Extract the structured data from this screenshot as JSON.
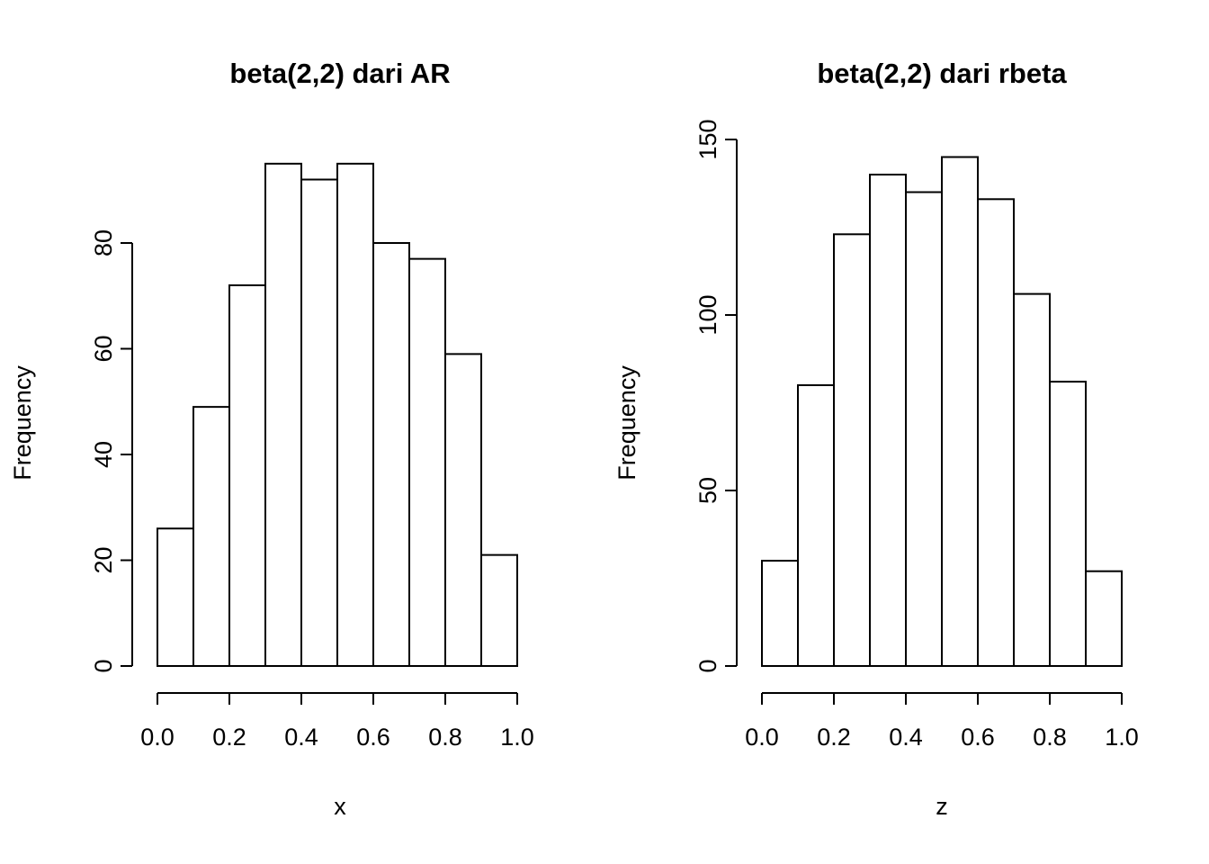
{
  "page": {
    "background": "#ffffff",
    "foreground": "#000000"
  },
  "chart_data": [
    {
      "type": "bar",
      "kind": "histogram",
      "title": "beta(2,2) dari AR",
      "xlabel": "x",
      "ylabel": "Frequency",
      "categories": [
        "0.0-0.1",
        "0.1-0.2",
        "0.2-0.3",
        "0.3-0.4",
        "0.4-0.5",
        "0.5-0.6",
        "0.6-0.7",
        "0.7-0.8",
        "0.8-0.9",
        "0.9-1.0"
      ],
      "values": [
        26,
        49,
        72,
        95,
        92,
        95,
        80,
        77,
        59,
        21
      ],
      "xlim": [
        0.0,
        1.0
      ],
      "ylim": [
        0,
        95
      ],
      "x_ticks": [
        0.0,
        0.2,
        0.4,
        0.6,
        0.8,
        1.0
      ],
      "x_tick_labels": [
        "0.0",
        "0.2",
        "0.4",
        "0.6",
        "0.8",
        "1.0"
      ],
      "y_ticks": [
        0,
        20,
        40,
        60,
        80
      ],
      "y_tick_labels": [
        "0",
        "20",
        "40",
        "60",
        "80"
      ],
      "grid": false,
      "legend": "none",
      "bar_fill": "#ffffff",
      "bar_stroke": "#000000"
    },
    {
      "type": "bar",
      "kind": "histogram",
      "title": "beta(2,2) dari rbeta",
      "xlabel": "z",
      "ylabel": "Frequency",
      "categories": [
        "0.0-0.1",
        "0.1-0.2",
        "0.2-0.3",
        "0.3-0.4",
        "0.4-0.5",
        "0.5-0.6",
        "0.6-0.7",
        "0.7-0.8",
        "0.8-0.9",
        "0.9-1.0"
      ],
      "values": [
        30,
        80,
        123,
        140,
        135,
        145,
        133,
        106,
        81,
        27
      ],
      "xlim": [
        0.0,
        1.0
      ],
      "ylim": [
        0,
        150
      ],
      "x_ticks": [
        0.0,
        0.2,
        0.4,
        0.6,
        0.8,
        1.0
      ],
      "x_tick_labels": [
        "0.0",
        "0.2",
        "0.4",
        "0.6",
        "0.8",
        "1.0"
      ],
      "y_ticks": [
        0,
        50,
        100,
        150
      ],
      "y_tick_labels": [
        "0",
        "50",
        "100",
        "150"
      ],
      "grid": false,
      "legend": "none",
      "bar_fill": "#ffffff",
      "bar_stroke": "#000000"
    }
  ]
}
